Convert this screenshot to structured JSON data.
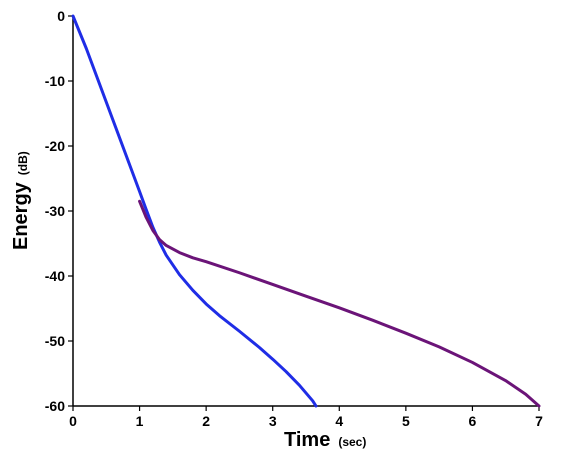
{
  "chart_data": {
    "type": "line",
    "xlabel": "Time",
    "xlabel_unit": "(sec)",
    "ylabel": "Energy",
    "ylabel_unit": "(dB)",
    "xlim": [
      0,
      7
    ],
    "ylim": [
      -60,
      0
    ],
    "x_ticks": [
      "0",
      "1",
      "2",
      "3",
      "4",
      "5",
      "6",
      "7"
    ],
    "y_ticks": [
      "0",
      "-10",
      "-20",
      "-30",
      "-40",
      "-50",
      "-60"
    ],
    "grid": false,
    "series": [
      {
        "color": "#1f2de6",
        "points": [
          [
            0,
            0
          ],
          [
            0.2,
            -5
          ],
          [
            0.4,
            -10.5
          ],
          [
            0.6,
            -16
          ],
          [
            0.8,
            -21.5
          ],
          [
            1.0,
            -27
          ],
          [
            1.1,
            -29.8
          ],
          [
            1.2,
            -32.5
          ],
          [
            1.3,
            -34.8
          ],
          [
            1.4,
            -36.8
          ],
          [
            1.6,
            -39.8
          ],
          [
            1.8,
            -42.2
          ],
          [
            2.0,
            -44.3
          ],
          [
            2.2,
            -46.1
          ],
          [
            2.5,
            -48.5
          ],
          [
            2.8,
            -51
          ],
          [
            3.0,
            -52.8
          ],
          [
            3.2,
            -54.7
          ],
          [
            3.4,
            -56.8
          ],
          [
            3.6,
            -59.2
          ],
          [
            3.65,
            -60
          ]
        ]
      },
      {
        "color": "#6b1478",
        "points": [
          [
            1.0,
            -28.5
          ],
          [
            1.1,
            -31
          ],
          [
            1.2,
            -33
          ],
          [
            1.3,
            -34.4
          ],
          [
            1.4,
            -35.3
          ],
          [
            1.6,
            -36.4
          ],
          [
            1.8,
            -37.2
          ],
          [
            2.0,
            -37.8
          ],
          [
            2.5,
            -39.5
          ],
          [
            3.0,
            -41.3
          ],
          [
            3.5,
            -43.1
          ],
          [
            4.0,
            -44.9
          ],
          [
            4.5,
            -46.8
          ],
          [
            5.0,
            -48.8
          ],
          [
            5.5,
            -50.9
          ],
          [
            6.0,
            -53.3
          ],
          [
            6.5,
            -56.1
          ],
          [
            6.8,
            -58.2
          ],
          [
            7.0,
            -60
          ]
        ]
      }
    ]
  }
}
